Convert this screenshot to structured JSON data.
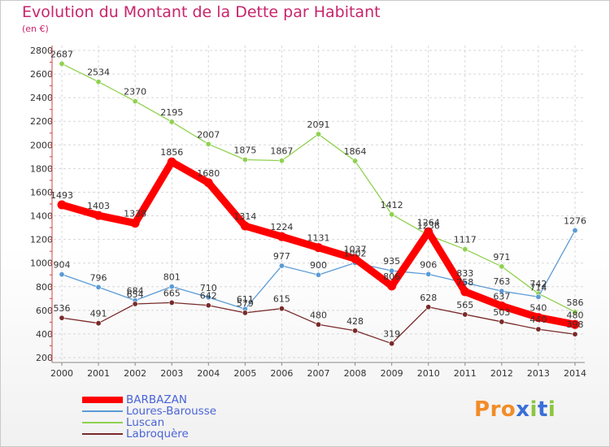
{
  "chart_data": {
    "type": "line",
    "title": "Evolution du Montant de la Dette par Habitant",
    "subtitle": "(en €)",
    "x": [
      "2000",
      "2001",
      "2002",
      "2003",
      "2004",
      "2005",
      "2006",
      "2007",
      "2008",
      "2009",
      "2010",
      "2011",
      "2012",
      "2013",
      "2014"
    ],
    "ylim": [
      200,
      2800
    ],
    "yticks": [
      200,
      400,
      600,
      800,
      1000,
      1200,
      1400,
      1600,
      1800,
      2000,
      2200,
      2400,
      2600,
      2800
    ],
    "grid": true,
    "legend_position": "bottom-left",
    "series": [
      {
        "name": "BARBAZAN",
        "color": "#ff0000",
        "emphasis": true,
        "values": [
          1493,
          1403,
          1338,
          1856,
          1680,
          1314,
          1224,
          1131,
          1037,
          806,
          1264,
          758,
          637,
          540,
          480
        ]
      },
      {
        "name": "Loures-Barousse",
        "color": "#5b9bd5",
        "values": [
          904,
          796,
          684,
          801,
          710,
          611,
          977,
          900,
          1002,
          935,
          906,
          833,
          763,
          714,
          1276
        ]
      },
      {
        "name": "Luscan",
        "color": "#8fd14f",
        "values": [
          2687,
          2534,
          2370,
          2195,
          2007,
          1875,
          1867,
          2091,
          1864,
          1412,
          1236,
          1117,
          971,
          742,
          586
        ]
      },
      {
        "name": "Labroquère",
        "color": "#7a2a2a",
        "values": [
          536,
          491,
          654,
          665,
          642,
          579,
          615,
          480,
          428,
          319,
          628,
          565,
          503,
          440,
          398
        ]
      }
    ]
  },
  "logo": {
    "text": "Proxiti",
    "letters": [
      {
        "ch": "P",
        "color": "#f28c28"
      },
      {
        "ch": "r",
        "color": "#f28c28"
      },
      {
        "ch": "o",
        "color": "#f28c28"
      },
      {
        "ch": "x",
        "color": "#3a6fd8"
      },
      {
        "ch": "i",
        "color": "#8cc63f"
      },
      {
        "ch": "t",
        "color": "#3a6fd8"
      },
      {
        "ch": "i",
        "color": "#8cc63f"
      }
    ]
  }
}
